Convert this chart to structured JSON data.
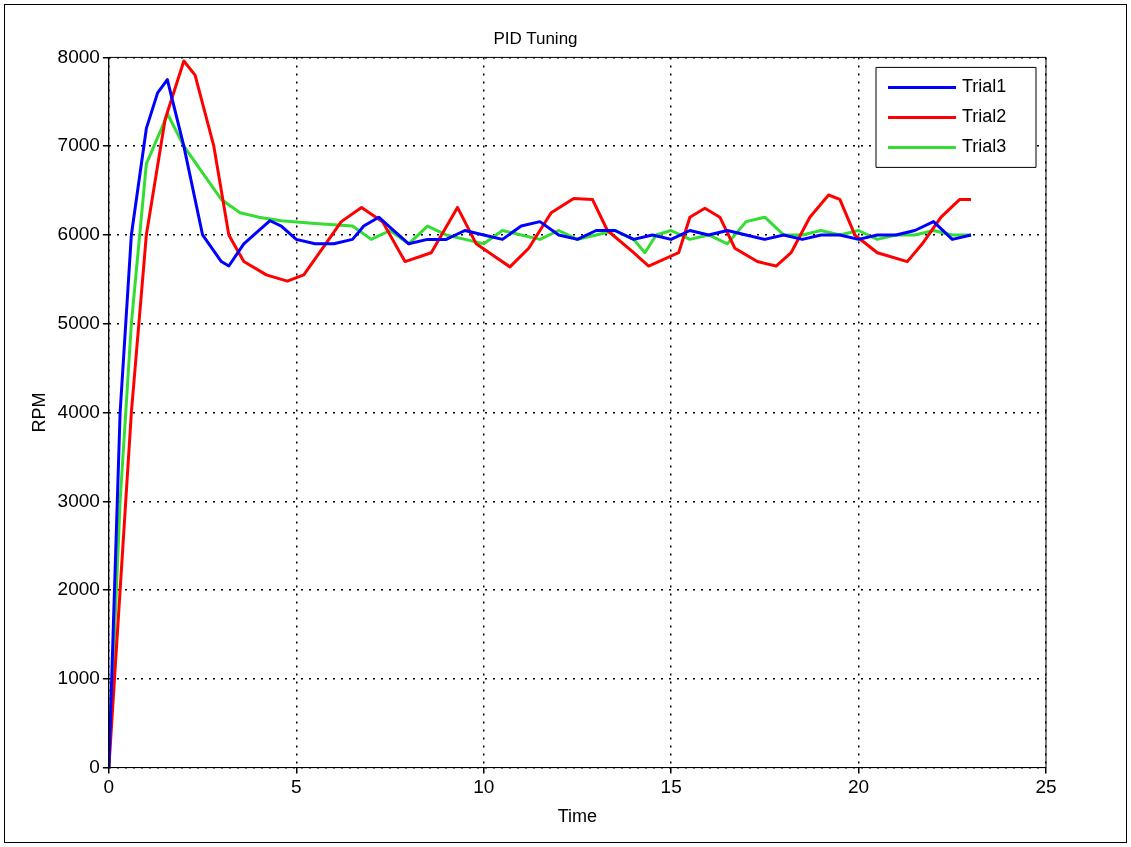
{
  "chart_data": {
    "type": "line",
    "title": "PID Tuning",
    "xlabel": "Time",
    "ylabel": "RPM",
    "xlim": [
      0,
      25
    ],
    "xticks": [
      0,
      5,
      10,
      15,
      20,
      25
    ],
    "ylim": [
      0,
      8000
    ],
    "yticks": [
      0,
      1000,
      2000,
      3000,
      4000,
      5000,
      6000,
      7000,
      8000
    ],
    "grid": true,
    "legend": "top right",
    "marker": "none",
    "line_style": "solid",
    "series": [
      {
        "name": "Trial1",
        "color": "#0000ff",
        "x": [
          0,
          0.3,
          0.6,
          1.0,
          1.3,
          1.56,
          2.0,
          2.5,
          3.0,
          3.2,
          3.6,
          4.3,
          4.6,
          5.0,
          5.5,
          6.0,
          6.5,
          6.8,
          7.2,
          7.6,
          8,
          8.5,
          9,
          9.5,
          10,
          10.5,
          11,
          11.5,
          12,
          12.5,
          13,
          13.5,
          14,
          14.5,
          15,
          15.5,
          16,
          16.5,
          17,
          17.5,
          18,
          18.5,
          19,
          19.5,
          20,
          20.5,
          21,
          21.5,
          22,
          22.5,
          23
        ],
        "values": [
          0,
          4000,
          6000,
          7200,
          7600,
          7750,
          7000,
          6000,
          5700,
          5650,
          5900,
          6160,
          6100,
          5950,
          5900,
          5900,
          5950,
          6100,
          6200,
          6050,
          5900,
          5950,
          5950,
          6050,
          6000,
          5950,
          6100,
          6150,
          6000,
          5950,
          6050,
          6050,
          5950,
          6000,
          5950,
          6050,
          6000,
          6050,
          6000,
          5950,
          6000,
          5950,
          6000,
          6000,
          5950,
          6000,
          6000,
          6050,
          6150,
          5950,
          6000
        ]
      },
      {
        "name": "Trial2",
        "color": "#ff0000",
        "x": [
          0,
          0.3,
          0.6,
          1.0,
          1.5,
          2.0,
          2.3,
          2.8,
          3.2,
          3.6,
          4.2,
          4.76,
          5.2,
          5.7,
          6.2,
          6.74,
          7.3,
          7.9,
          8.6,
          9.3,
          9.8,
          10.7,
          11.2,
          11.8,
          12.4,
          12.9,
          13.3,
          14,
          14.4,
          15.2,
          15.5,
          15.9,
          16.3,
          16.7,
          17.3,
          17.8,
          18.2,
          18.7,
          19.2,
          19.5,
          19.9,
          20.5,
          21.3,
          21.7,
          22.2,
          22.7,
          23
        ],
        "values": [
          0,
          2000,
          4000,
          6000,
          7300,
          7960,
          7800,
          7000,
          6000,
          5700,
          5550,
          5480,
          5550,
          5850,
          6150,
          6310,
          6150,
          5700,
          5800,
          6310,
          5900,
          5640,
          5850,
          6250,
          6410,
          6400,
          6050,
          5800,
          5650,
          5800,
          6200,
          6300,
          6200,
          5850,
          5700,
          5650,
          5800,
          6200,
          6450,
          6400,
          6000,
          5800,
          5700,
          5900,
          6200,
          6400,
          6400
        ]
      },
      {
        "name": "Trial3",
        "color": "#33dd33",
        "x": [
          0,
          0.3,
          0.6,
          1.0,
          1.57,
          2.0,
          2.5,
          3.0,
          3.5,
          4.0,
          4.6,
          5.5,
          6.5,
          7.0,
          7.5,
          8.0,
          8.5,
          9,
          9.5,
          10,
          10.5,
          11,
          11.5,
          12,
          12.5,
          13,
          13.5,
          14,
          14.3,
          14.6,
          15,
          15.5,
          16,
          16.5,
          17,
          17.5,
          18,
          18.5,
          19,
          19.5,
          20,
          20.5,
          21,
          21.5,
          22,
          22.5,
          23
        ],
        "values": [
          0,
          3000,
          5000,
          6800,
          7360,
          7000,
          6700,
          6400,
          6250,
          6200,
          6160,
          6130,
          6100,
          5950,
          6050,
          5900,
          6100,
          6000,
          5950,
          5900,
          6050,
          6000,
          5950,
          6050,
          5950,
          6000,
          6050,
          5950,
          5800,
          6000,
          6050,
          5950,
          6000,
          5900,
          6150,
          6200,
          6000,
          6000,
          6050,
          6000,
          6050,
          5950,
          6000,
          6000,
          6050,
          6000,
          6000
        ]
      }
    ]
  }
}
